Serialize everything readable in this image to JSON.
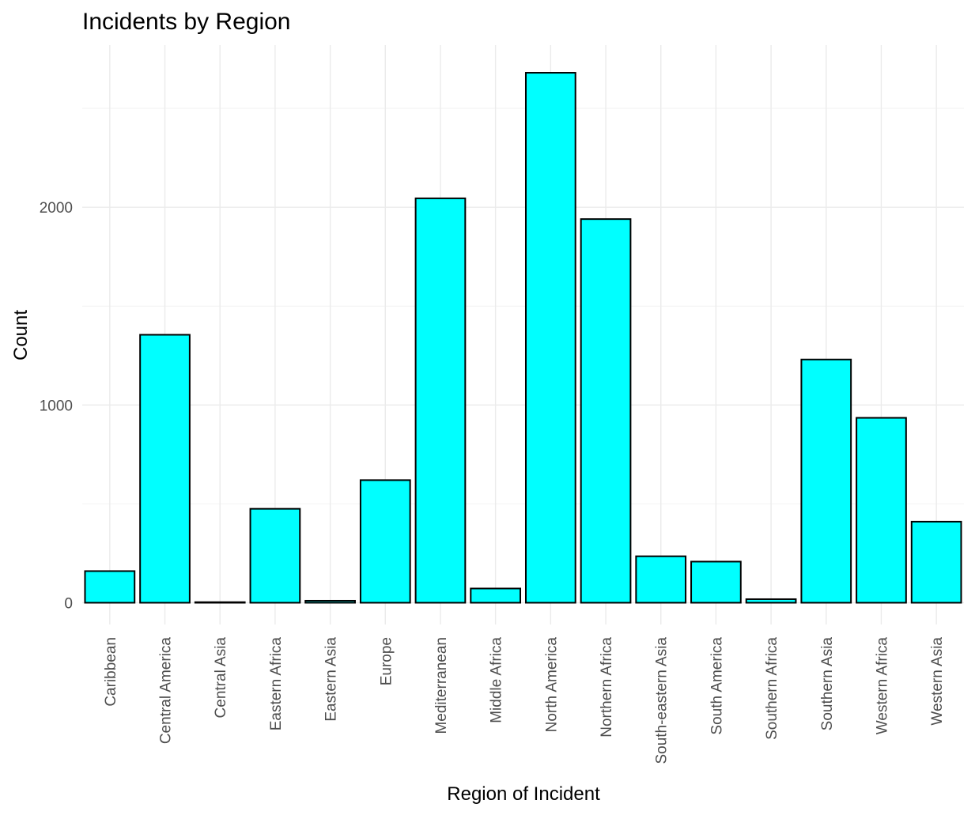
{
  "chart_data": {
    "type": "bar",
    "title": "Incidents by Region",
    "xlabel": "Region of Incident",
    "ylabel": "Count",
    "categories": [
      "Caribbean",
      "Central America",
      "Central Asia",
      "Eastern Africa",
      "Eastern Asia",
      "Europe",
      "Mediterranean",
      "Middle Africa",
      "North America",
      "Northern Africa",
      "South-eastern Asia",
      "South America",
      "Southern Africa",
      "Southern Asia",
      "Western Africa",
      "Western Asia"
    ],
    "values": [
      160,
      1355,
      3,
      475,
      10,
      620,
      2045,
      72,
      2680,
      1940,
      235,
      208,
      18,
      1230,
      935,
      410
    ],
    "ylim": [
      -110,
      2820
    ],
    "y_ticks": [
      0,
      1000,
      2000
    ],
    "y_tick_labels": [
      "0",
      "1000",
      "2000"
    ],
    "grid": true,
    "legend": "none",
    "colors": {
      "fill": "#00ffff",
      "outline": "#000000"
    }
  }
}
